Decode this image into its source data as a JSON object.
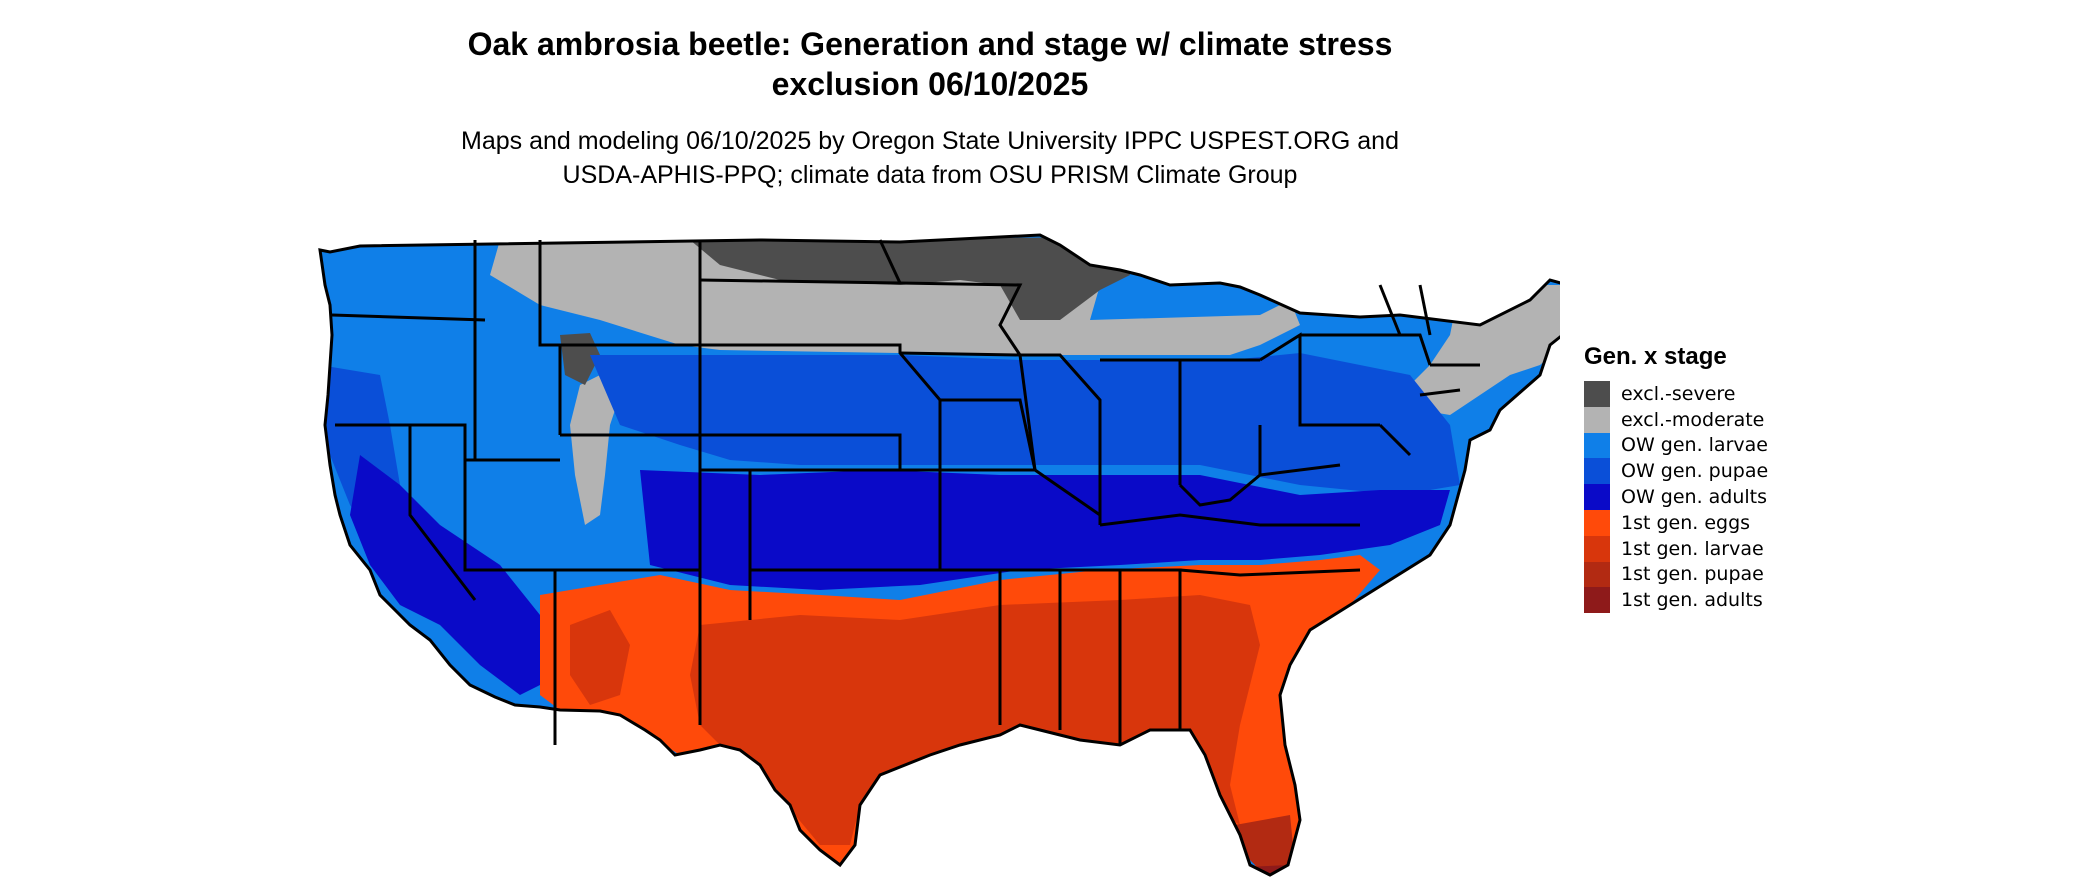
{
  "title_line1": "Oak ambrosia beetle: Generation and stage w/ climate stress",
  "title_line2": "exclusion 06/10/2025",
  "subtitle_line1": "Maps and modeling 06/10/2025 by Oregon State University IPPC USPEST.ORG and",
  "subtitle_line2": "USDA-APHIS-PPQ; climate data from OSU PRISM Climate Group",
  "legend": {
    "title": "Gen. x stage",
    "items": [
      {
        "label": "excl.-severe",
        "color": "#4d4d4d"
      },
      {
        "label": "excl.-moderate",
        "color": "#b3b3b3"
      },
      {
        "label": "OW gen. larvae",
        "color": "#0f7fe8"
      },
      {
        "label": "OW gen. pupae",
        "color": "#0a4fd8"
      },
      {
        "label": "OW gen. adults",
        "color": "#0a0ac8"
      },
      {
        "label": "1st gen. eggs",
        "color": "#ff4a0a"
      },
      {
        "label": "1st gen. larvae",
        "color": "#d8360c"
      },
      {
        "label": "1st gen. pupae",
        "color": "#b22a12"
      },
      {
        "label": "1st gen. adults",
        "color": "#8e1a1a"
      }
    ]
  }
}
